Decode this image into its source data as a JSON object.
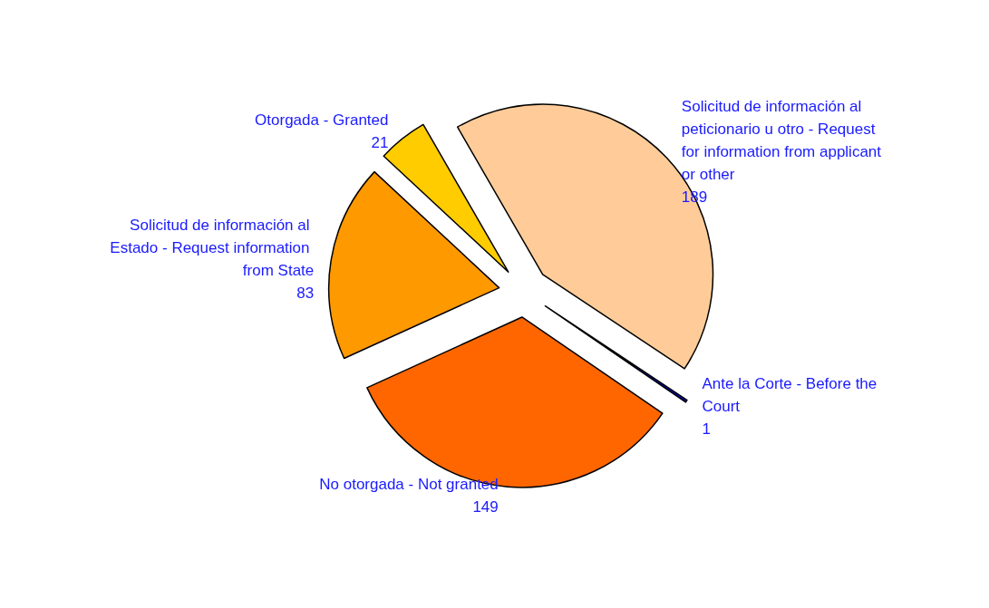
{
  "chart_data": {
    "type": "pie",
    "categories": [
      "Solicitud de información al peticionario u otro - Request for information from applicant or other",
      "Ante la Corte - Before the Court",
      "No otorgada - Not granted",
      "Solicitud de información al Estado - Request information from State",
      "Otorgada - Granted"
    ],
    "values": [
      189,
      1,
      149,
      83,
      21
    ],
    "colors": [
      "#ffcc99",
      "#0000cc",
      "#ff6600",
      "#ff9900",
      "#ffcc00"
    ],
    "data_labels": true,
    "legend": false
  }
}
